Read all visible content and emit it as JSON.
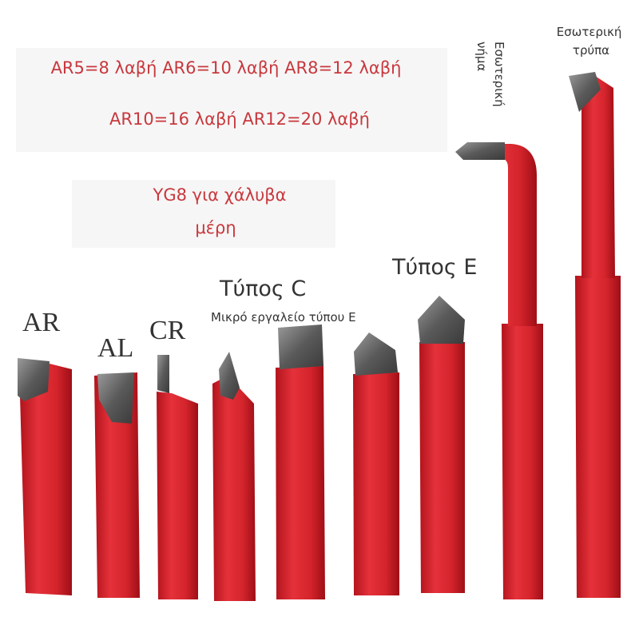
{
  "specs": {
    "lines": [
      "AR5=8 λαβή AR6=10 λαβή AR8=12 λαβή",
      "AR10=16 λαβή AR12=20 λαβή"
    ]
  },
  "material": {
    "lines": [
      "YG8 για χάλυβα",
      "μέρη"
    ]
  },
  "labels": {
    "ar": "AR",
    "al": "AL",
    "cr": "CR",
    "type_c": "Τύπος C",
    "small_tool": "Μικρό εργαλείο τύπου E",
    "type_e": "Τύπος E",
    "internal_thread": [
      "Εσωτερική",
      "νήμα"
    ],
    "internal_hole": [
      "Εσωτερική",
      "τρύπα"
    ]
  }
}
